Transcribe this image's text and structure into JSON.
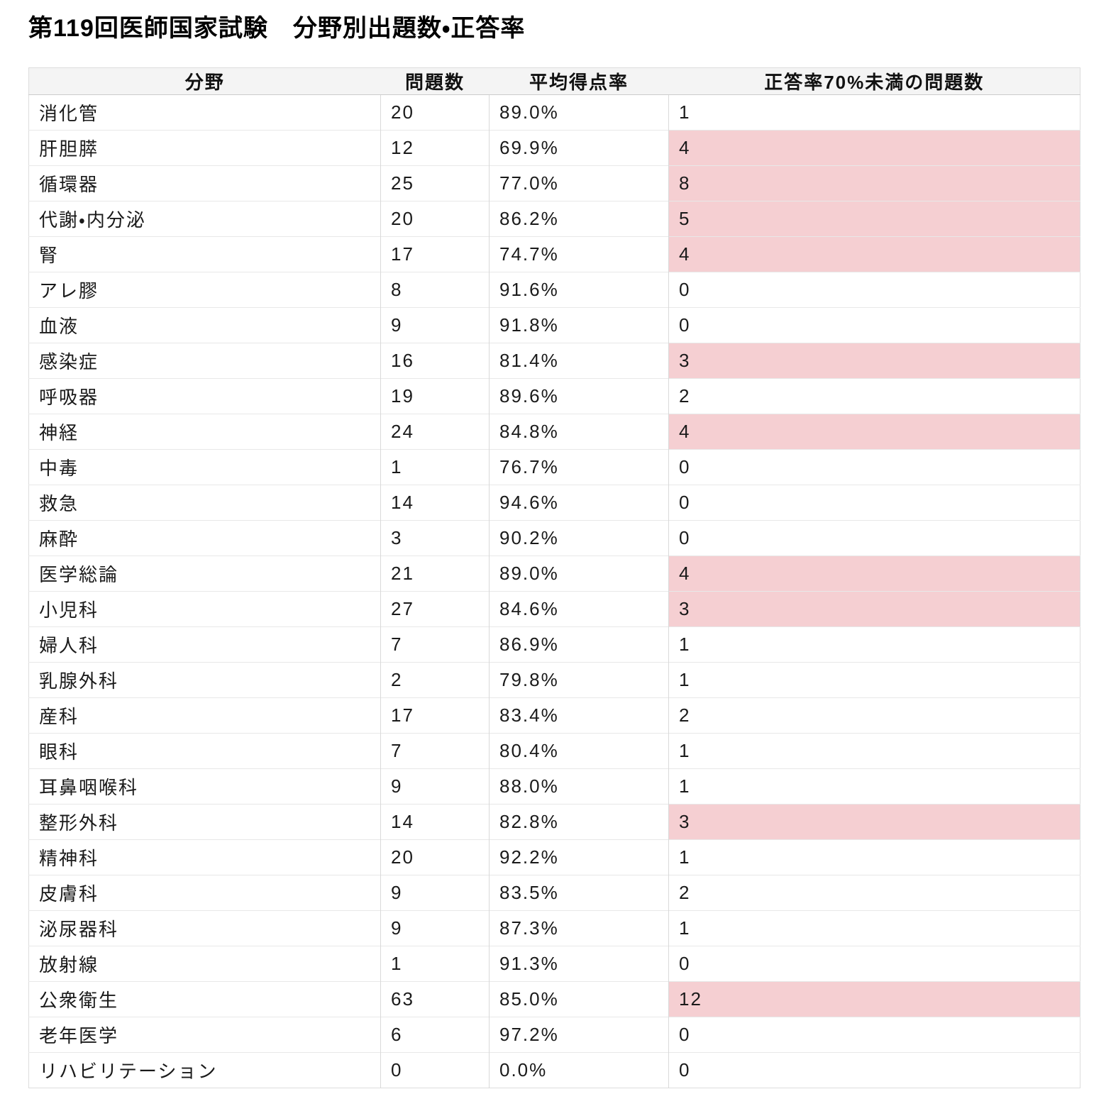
{
  "chart_data": {
    "type": "table",
    "title": "第119回医師国家試験　分野別出題数・正答率",
    "columns": [
      "分野",
      "問題数",
      "平均得点率",
      "正答率70%未満の問題数"
    ],
    "rows": [
      {
        "field": "消化管",
        "questions": "20",
        "avg_rate": "89.0%",
        "under70": "1",
        "highlight": false
      },
      {
        "field": "肝胆膵",
        "questions": "12",
        "avg_rate": "69.9%",
        "under70": "4",
        "highlight": true
      },
      {
        "field": "循環器",
        "questions": "25",
        "avg_rate": "77.0%",
        "under70": "8",
        "highlight": true
      },
      {
        "field": "代謝・内分泌",
        "questions": "20",
        "avg_rate": "86.2%",
        "under70": "5",
        "highlight": true
      },
      {
        "field": "腎",
        "questions": "17",
        "avg_rate": "74.7%",
        "under70": "4",
        "highlight": true
      },
      {
        "field": "アレ膠",
        "questions": "8",
        "avg_rate": "91.6%",
        "under70": "0",
        "highlight": false
      },
      {
        "field": "血液",
        "questions": "9",
        "avg_rate": "91.8%",
        "under70": "0",
        "highlight": false
      },
      {
        "field": "感染症",
        "questions": "16",
        "avg_rate": "81.4%",
        "under70": "3",
        "highlight": true
      },
      {
        "field": "呼吸器",
        "questions": "19",
        "avg_rate": "89.6%",
        "under70": "2",
        "highlight": false
      },
      {
        "field": "神経",
        "questions": "24",
        "avg_rate": "84.8%",
        "under70": "4",
        "highlight": true
      },
      {
        "field": "中毒",
        "questions": "1",
        "avg_rate": "76.7%",
        "under70": "0",
        "highlight": false
      },
      {
        "field": "救急",
        "questions": "14",
        "avg_rate": "94.6%",
        "under70": "0",
        "highlight": false
      },
      {
        "field": "麻酔",
        "questions": "3",
        "avg_rate": "90.2%",
        "under70": "0",
        "highlight": false
      },
      {
        "field": "医学総論",
        "questions": "21",
        "avg_rate": "89.0%",
        "under70": "4",
        "highlight": true
      },
      {
        "field": "小児科",
        "questions": "27",
        "avg_rate": "84.6%",
        "under70": "3",
        "highlight": true
      },
      {
        "field": "婦人科",
        "questions": "7",
        "avg_rate": "86.9%",
        "under70": "1",
        "highlight": false
      },
      {
        "field": "乳腺外科",
        "questions": "2",
        "avg_rate": "79.8%",
        "under70": "1",
        "highlight": false
      },
      {
        "field": "産科",
        "questions": "17",
        "avg_rate": "83.4%",
        "under70": "2",
        "highlight": false
      },
      {
        "field": "眼科",
        "questions": "7",
        "avg_rate": "80.4%",
        "under70": "1",
        "highlight": false
      },
      {
        "field": "耳鼻咽喉科",
        "questions": "9",
        "avg_rate": "88.0%",
        "under70": "1",
        "highlight": false
      },
      {
        "field": "整形外科",
        "questions": "14",
        "avg_rate": "82.8%",
        "under70": "3",
        "highlight": true
      },
      {
        "field": "精神科",
        "questions": "20",
        "avg_rate": "92.2%",
        "under70": "1",
        "highlight": false
      },
      {
        "field": "皮膚科",
        "questions": "9",
        "avg_rate": "83.5%",
        "under70": "2",
        "highlight": false
      },
      {
        "field": "泌尿器科",
        "questions": "9",
        "avg_rate": "87.3%",
        "under70": "1",
        "highlight": false
      },
      {
        "field": "放射線",
        "questions": "1",
        "avg_rate": "91.3%",
        "under70": "0",
        "highlight": false
      },
      {
        "field": "公衆衛生",
        "questions": "63",
        "avg_rate": "85.0%",
        "under70": "12",
        "highlight": true
      },
      {
        "field": "老年医学",
        "questions": "6",
        "avg_rate": "97.2%",
        "under70": "0",
        "highlight": false
      },
      {
        "field": "リハビリテーション",
        "questions": "0",
        "avg_rate": "0.0%",
        "under70": "0",
        "highlight": false
      }
    ]
  },
  "colors": {
    "highlight_pink": "#f5cfd2",
    "header_bg": "#f4f4f4"
  }
}
